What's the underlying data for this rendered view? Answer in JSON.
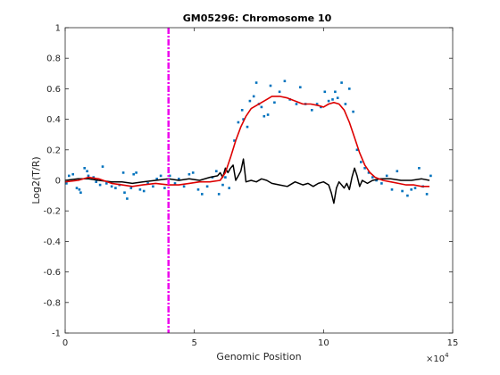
{
  "chart_data": {
    "type": "scatter",
    "title": "GM05296: Chromosome 10",
    "xlabel": "Genomic Position",
    "ylabel": "Log2(T/R)",
    "x_exponent_label": "×10",
    "x_exponent_power": "4",
    "x_scale_factor": 10000,
    "xlim": [
      0,
      15
    ],
    "ylim": [
      -1,
      1
    ],
    "x_ticks": [
      0,
      5,
      10,
      15
    ],
    "y_ticks": [
      -1,
      -0.8,
      -0.6,
      -0.4,
      -0.2,
      0,
      0.2,
      0.4,
      0.6,
      0.8,
      1
    ],
    "grid": false,
    "colors": {
      "points": "#0072BD",
      "smoothed": "#DD0000",
      "difference": "#000000",
      "marker_line": "#EE00EE",
      "axes": "#262626"
    },
    "vertical_marker_x": 4.0,
    "series": [
      {
        "kind": "points",
        "x": [
          0.05,
          0.15,
          0.3,
          0.45,
          0.55,
          0.6,
          0.75,
          0.85,
          0.9,
          1.1,
          1.2,
          1.35,
          1.45,
          1.6,
          1.8,
          1.95,
          2.1,
          2.25,
          2.3,
          2.4,
          2.55,
          2.65,
          2.75,
          2.9,
          3.05,
          3.2,
          3.4,
          3.55,
          3.7,
          3.85,
          4.05,
          4.25,
          4.4,
          4.6,
          4.8,
          4.95,
          5.15,
          5.3,
          5.5,
          5.7,
          5.85,
          5.95,
          6.1,
          6.2,
          6.35,
          6.55,
          6.7,
          6.85,
          6.9,
          7.05,
          7.15,
          7.3,
          7.4,
          7.5,
          7.6,
          7.7,
          7.85,
          7.95,
          8.1,
          8.3,
          8.5,
          8.7,
          8.95,
          9.1,
          9.3,
          9.55,
          9.75,
          9.9,
          10.05,
          10.2,
          10.35,
          10.45,
          10.55,
          10.7,
          10.85,
          11.0,
          11.15,
          11.3,
          11.45,
          11.6,
          11.75,
          11.9,
          12.05,
          12.25,
          12.45,
          12.65,
          12.85,
          13.05,
          13.25,
          13.4,
          13.55,
          13.7,
          13.85,
          14.0,
          14.15
        ],
        "y": [
          -0.02,
          0.03,
          0.04,
          -0.05,
          -0.06,
          -0.08,
          0.08,
          0.06,
          0.03,
          0.02,
          -0.01,
          -0.03,
          0.09,
          -0.02,
          -0.04,
          -0.05,
          -0.03,
          0.05,
          -0.08,
          -0.12,
          -0.05,
          0.04,
          0.05,
          -0.06,
          -0.07,
          -0.02,
          -0.04,
          0.01,
          0.03,
          -0.05,
          0.03,
          -0.02,
          0.01,
          -0.04,
          0.04,
          0.05,
          -0.06,
          -0.09,
          -0.04,
          0.02,
          0.06,
          -0.09,
          -0.03,
          0.02,
          -0.05,
          0.26,
          0.38,
          0.46,
          0.4,
          0.35,
          0.52,
          0.55,
          0.64,
          0.5,
          0.48,
          0.42,
          0.43,
          0.62,
          0.51,
          0.58,
          0.65,
          0.53,
          0.5,
          0.61,
          0.5,
          0.46,
          0.5,
          0.48,
          0.58,
          0.52,
          0.53,
          0.58,
          0.54,
          0.64,
          0.5,
          0.6,
          0.45,
          0.2,
          0.12,
          0.08,
          0.05,
          0.02,
          0.0,
          -0.02,
          0.03,
          -0.06,
          0.06,
          -0.07,
          -0.1,
          -0.06,
          -0.05,
          0.08,
          -0.04,
          -0.09,
          0.03
        ]
      },
      {
        "kind": "smoothed",
        "x": [
          0.0,
          0.5,
          0.9,
          1.3,
          1.8,
          2.2,
          2.6,
          3.0,
          3.5,
          4.0,
          4.4,
          4.8,
          5.2,
          5.6,
          6.0,
          6.2,
          6.4,
          6.6,
          6.8,
          7.0,
          7.2,
          7.4,
          7.6,
          7.8,
          8.0,
          8.3,
          8.6,
          8.9,
          9.2,
          9.5,
          9.8,
          10.0,
          10.2,
          10.4,
          10.6,
          10.8,
          11.0,
          11.2,
          11.4,
          11.6,
          11.8,
          12.0,
          12.3,
          12.6,
          12.9,
          13.2,
          13.5,
          13.8,
          14.1
        ],
        "y": [
          -0.01,
          0.0,
          0.02,
          0.01,
          -0.02,
          -0.03,
          -0.04,
          -0.03,
          -0.02,
          -0.03,
          -0.03,
          -0.02,
          -0.01,
          -0.01,
          0.0,
          0.05,
          0.15,
          0.26,
          0.35,
          0.42,
          0.47,
          0.49,
          0.51,
          0.53,
          0.55,
          0.55,
          0.54,
          0.52,
          0.5,
          0.5,
          0.49,
          0.48,
          0.5,
          0.51,
          0.5,
          0.46,
          0.38,
          0.28,
          0.18,
          0.1,
          0.05,
          0.02,
          0.0,
          -0.01,
          -0.02,
          -0.03,
          -0.03,
          -0.04,
          -0.04
        ]
      },
      {
        "kind": "difference",
        "x": [
          0.0,
          0.5,
          0.9,
          1.3,
          1.8,
          2.2,
          2.6,
          3.0,
          3.5,
          4.0,
          4.4,
          4.8,
          5.2,
          5.6,
          5.9,
          6.0,
          6.1,
          6.2,
          6.3,
          6.4,
          6.5,
          6.6,
          6.7,
          6.8,
          6.9,
          7.0,
          7.2,
          7.4,
          7.6,
          7.8,
          8.0,
          8.3,
          8.6,
          8.9,
          9.2,
          9.4,
          9.6,
          9.8,
          10.0,
          10.2,
          10.3,
          10.4,
          10.5,
          10.6,
          10.7,
          10.8,
          10.9,
          11.0,
          11.1,
          11.2,
          11.3,
          11.4,
          11.5,
          11.7,
          11.9,
          12.2,
          12.6,
          13.0,
          13.4,
          13.8,
          14.1
        ],
        "y": [
          0.0,
          0.01,
          0.01,
          0.0,
          -0.01,
          -0.01,
          -0.02,
          -0.01,
          0.0,
          0.01,
          0.0,
          0.01,
          0.0,
          0.02,
          0.03,
          0.05,
          0.02,
          0.08,
          0.05,
          0.08,
          0.1,
          0.0,
          0.03,
          0.06,
          0.14,
          -0.01,
          0.0,
          -0.01,
          0.01,
          0.0,
          -0.02,
          -0.03,
          -0.04,
          -0.01,
          -0.03,
          -0.02,
          -0.04,
          -0.02,
          -0.01,
          -0.03,
          -0.08,
          -0.15,
          -0.05,
          -0.01,
          -0.03,
          -0.05,
          -0.02,
          -0.06,
          0.02,
          0.08,
          0.03,
          -0.04,
          0.0,
          -0.02,
          0.0,
          0.01,
          0.01,
          0.0,
          0.0,
          0.01,
          0.0
        ]
      }
    ]
  }
}
